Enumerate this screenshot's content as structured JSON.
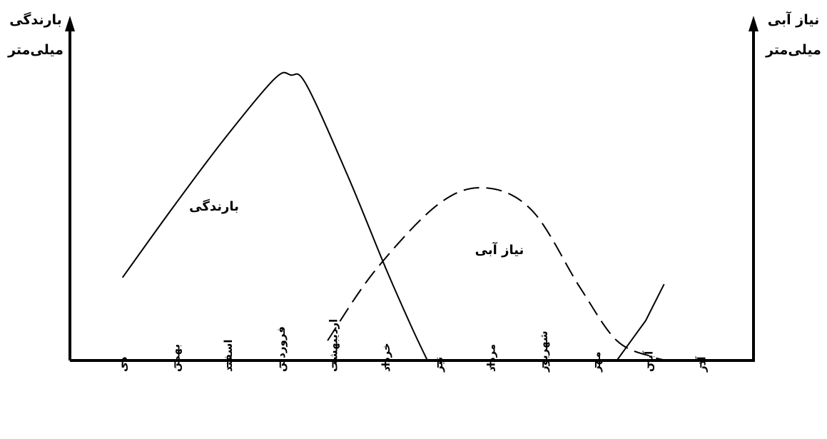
{
  "chart_data": {
    "type": "line",
    "title": "",
    "y_left_label": [
      "بارندگی",
      "میلی‌متر"
    ],
    "y_right_label": [
      "نیاز آبی",
      "میلی‌متر"
    ],
    "categories": [
      "دی",
      "بهمن",
      "اسفند",
      "فروردین",
      "اردیبهشت",
      "خرداد",
      "تیر",
      "مرداد",
      "شهریور",
      "مهر",
      "آبان",
      "آذر"
    ],
    "x_axis_numeric": {
      "ticks": [
        1,
        2,
        3,
        4,
        5,
        6,
        7,
        8,
        9,
        10,
        11,
        12
      ],
      "range": [
        0,
        13
      ]
    },
    "ylim": [
      0,
      100
    ],
    "series": [
      {
        "name": "بارندگی",
        "style": "solid",
        "color": "#000000",
        "points": [
          [
            1,
            25
          ],
          [
            2,
            47
          ],
          [
            3,
            68
          ],
          [
            3.9,
            85
          ],
          [
            4.2,
            86
          ],
          [
            4.5,
            83
          ],
          [
            5.3,
            55
          ],
          [
            6,
            28
          ],
          [
            6.5,
            10
          ],
          [
            6.8,
            0
          ]
        ],
        "points_late": [
          [
            10.4,
            0
          ],
          [
            10.95,
            12
          ],
          [
            11.3,
            23
          ]
        ]
      },
      {
        "name": "نیاز آبی",
        "style": "dashed",
        "color": "#000000",
        "points": [
          [
            4.9,
            6
          ],
          [
            5.8,
            27
          ],
          [
            7,
            47
          ],
          [
            7.9,
            52
          ],
          [
            8.8,
            45
          ],
          [
            9.7,
            22
          ],
          [
            10.4,
            6
          ],
          [
            11.1,
            1
          ],
          [
            11.4,
            0
          ]
        ]
      }
    ],
    "annotations": [
      {
        "text": "بارندگی",
        "for": "بارندگی"
      },
      {
        "text": "نیاز آبی",
        "for": "نیاز آبی"
      }
    ],
    "grid": false,
    "legend": "none"
  }
}
